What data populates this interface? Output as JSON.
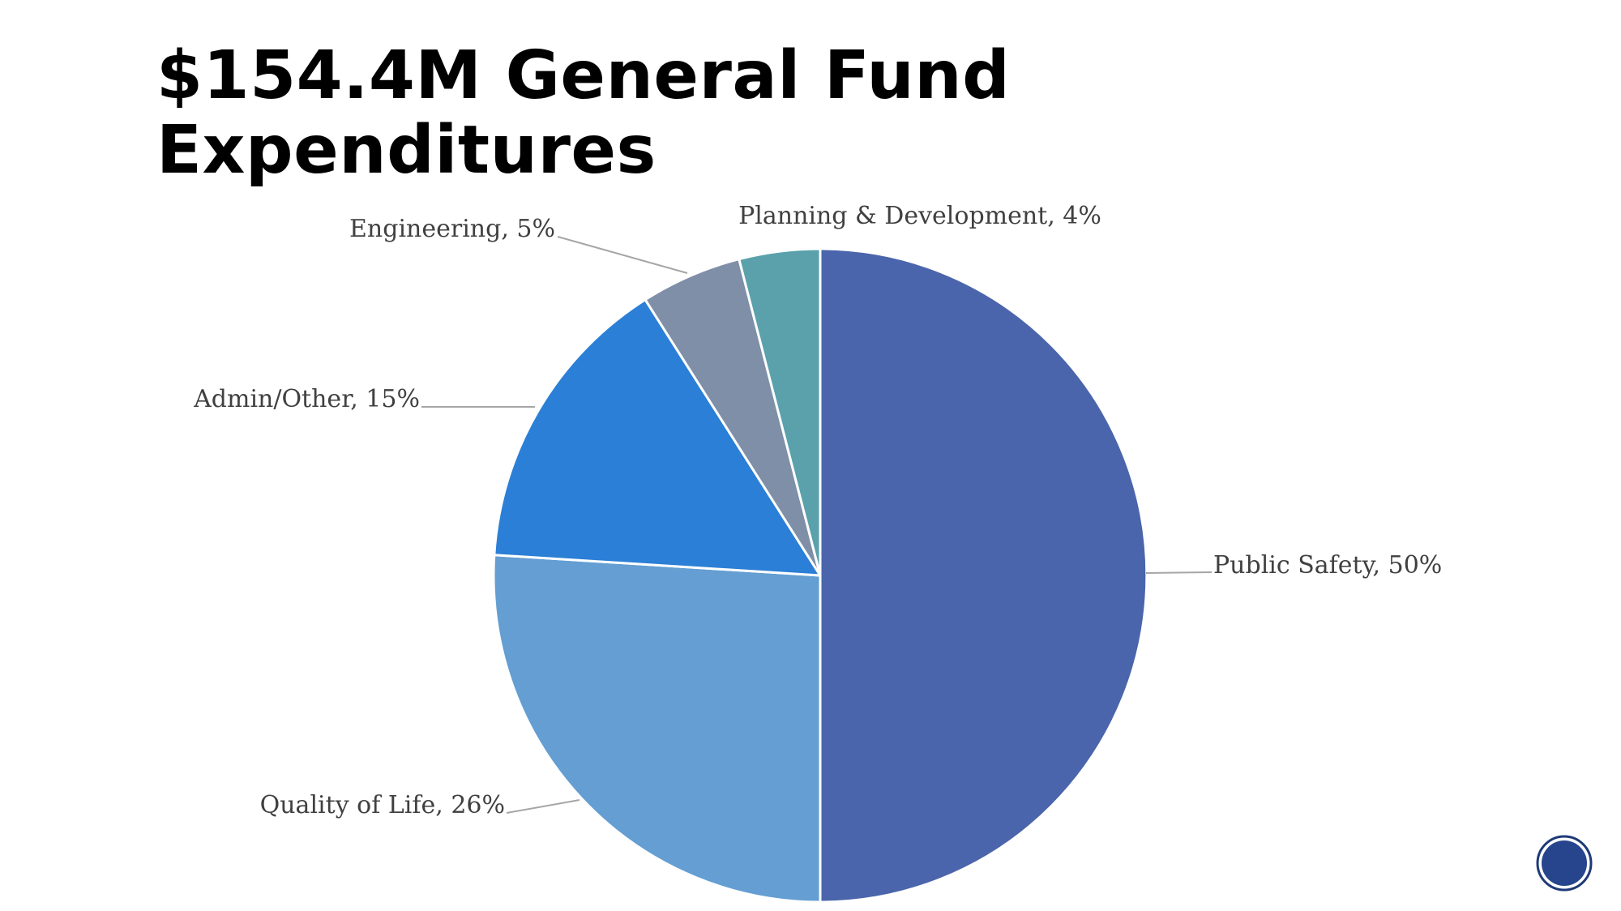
{
  "slide": {
    "title_line1": "$154.4M General Fund",
    "title_line2": "Expenditures"
  },
  "chart_data": {
    "type": "pie",
    "title": "$154.4M General Fund Expenditures",
    "slices": [
      {
        "label": "Public Safety",
        "value": 50,
        "color": "#4a65ab"
      },
      {
        "label": "Quality of Life",
        "value": 26,
        "color": "#649ed2"
      },
      {
        "label": "Admin/Other",
        "value": 15,
        "color": "#2b7fd6"
      },
      {
        "label": "Engineering",
        "value": 5,
        "color": "#7f8fa8"
      },
      {
        "label": "Planning & Development",
        "value": 4,
        "color": "#5aa1ac"
      }
    ],
    "data_labels": [
      "Public Safety, 50%",
      "Quality of Life, 26%",
      "Admin/Other, 15%",
      "Engineering, 5%",
      "Planning & Development, 4%"
    ],
    "legend": "none"
  },
  "colors": {
    "badge_fill": "#26458c",
    "badge_ring": "#1f3a78"
  },
  "icons": {
    "badge": "seal-logo-icon"
  }
}
